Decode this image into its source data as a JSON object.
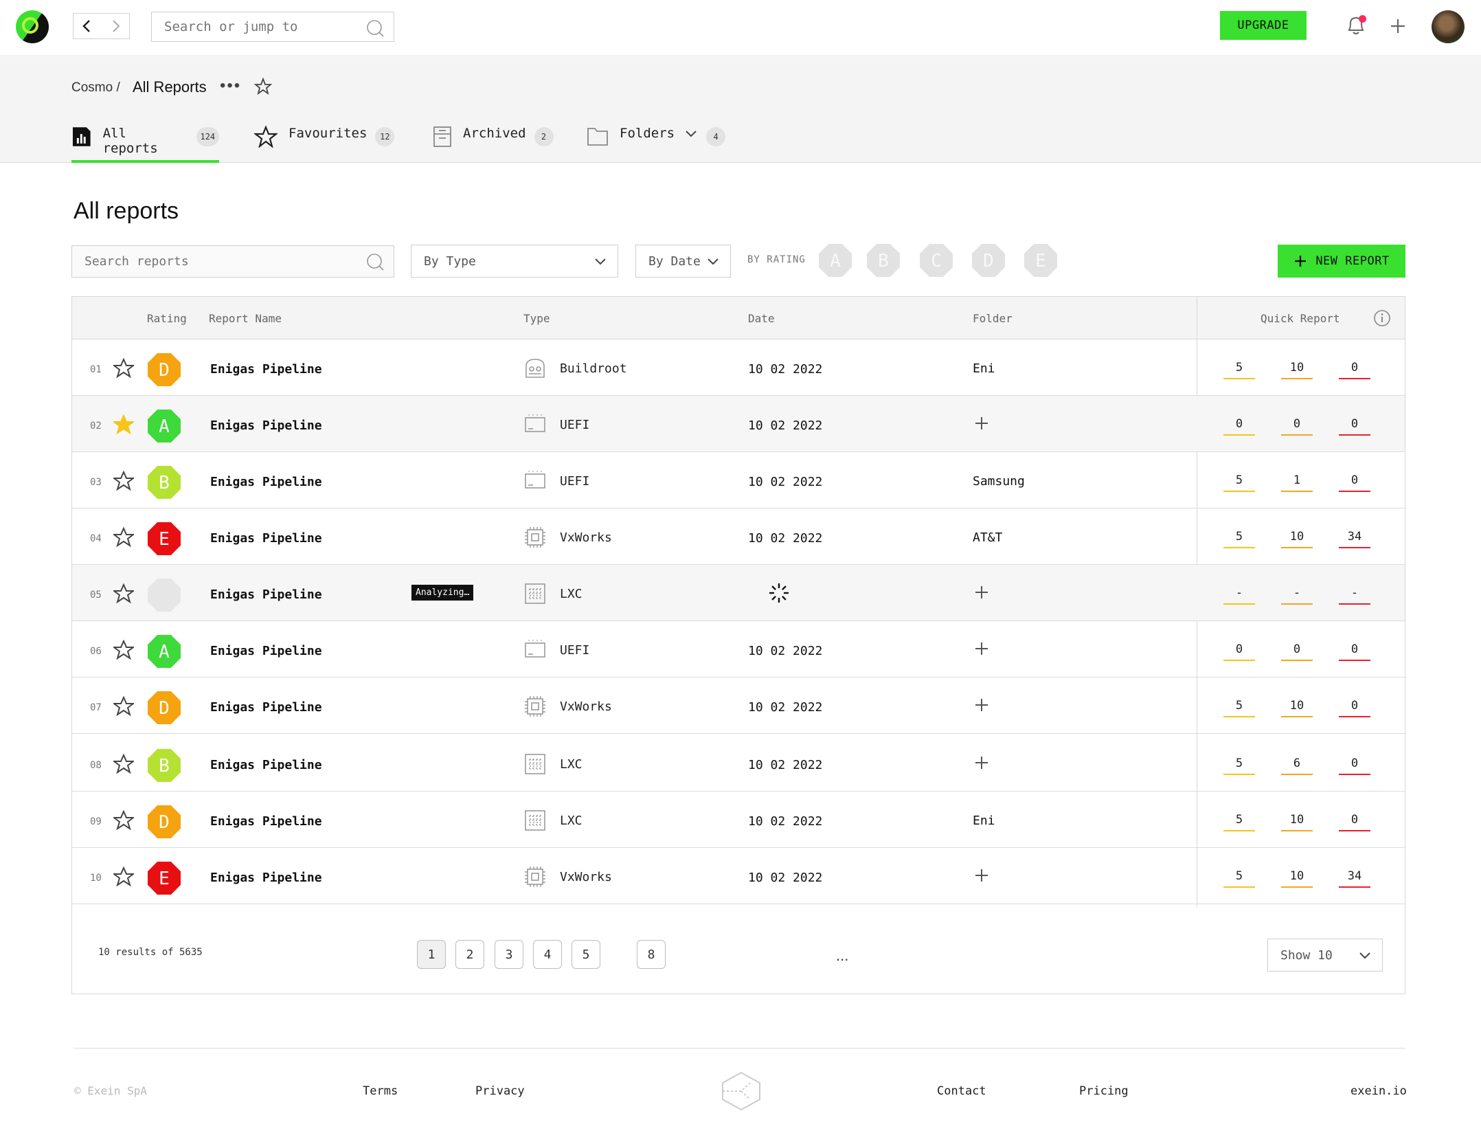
{
  "topbar": {
    "search_placeholder": "Search or jump to",
    "upgrade_label": "UPGRADE"
  },
  "breadcrumb": {
    "root": "Cosmo /",
    "current": "All Reports",
    "more": "•••"
  },
  "tabs": [
    {
      "label": "All reports",
      "count": "124"
    },
    {
      "label": "Favourites",
      "count": "12"
    },
    {
      "label": "Archived",
      "count": "2"
    },
    {
      "label": "Folders",
      "count": "4"
    }
  ],
  "page_title": "All reports",
  "filters": {
    "search_placeholder": "Search reports",
    "type_label": "By Type",
    "date_label": "By Date",
    "rating_label": "BY RATING",
    "ratings": [
      "A",
      "B",
      "C",
      "D",
      "E"
    ],
    "new_report_label": "NEW REPORT"
  },
  "table": {
    "headers": {
      "rating": "Rating",
      "name": "Report Name",
      "type": "Type",
      "date": "Date",
      "folder": "Folder",
      "quick_report": "Quick Report"
    },
    "rows": [
      {
        "num": "01",
        "starred": false,
        "rating": "D",
        "name": "Enigas Pipeline",
        "type": "Buildroot",
        "type_icon": "buildroot-icon",
        "date": "10 02 2022",
        "folder": "Eni",
        "q": [
          "5",
          "10",
          "0"
        ]
      },
      {
        "num": "02",
        "starred": true,
        "rating": "A",
        "name": "Enigas Pipeline",
        "type": "UEFI",
        "type_icon": "uefi-icon",
        "date": "10 02 2022",
        "folder": "",
        "q": [
          "0",
          "0",
          "0"
        ]
      },
      {
        "num": "03",
        "starred": false,
        "rating": "B",
        "name": "Enigas Pipeline",
        "type": "UEFI",
        "type_icon": "uefi-icon",
        "date": "10 02 2022",
        "folder": "Samsung",
        "q": [
          "5",
          "1",
          "0"
        ]
      },
      {
        "num": "04",
        "starred": false,
        "rating": "E",
        "name": "Enigas Pipeline",
        "type": "VxWorks",
        "type_icon": "chip-icon",
        "date": "10 02 2022",
        "folder": "AT&T",
        "q": [
          "5",
          "10",
          "34"
        ]
      },
      {
        "num": "05",
        "starred": false,
        "rating": "",
        "name": "Enigas Pipeline",
        "tag": "Analyzing…",
        "type": "LXC",
        "type_icon": "grid-icon",
        "date": "",
        "loading": true,
        "folder": "",
        "q": [
          "-",
          "-",
          "-"
        ]
      },
      {
        "num": "06",
        "starred": false,
        "rating": "A",
        "name": "Enigas Pipeline",
        "type": "UEFI",
        "type_icon": "uefi-icon",
        "date": "10 02 2022",
        "folder": "",
        "q": [
          "0",
          "0",
          "0"
        ]
      },
      {
        "num": "07",
        "starred": false,
        "rating": "D",
        "name": "Enigas Pipeline",
        "type": "VxWorks",
        "type_icon": "chip-icon",
        "date": "10 02 2022",
        "folder": "",
        "q": [
          "5",
          "10",
          "0"
        ]
      },
      {
        "num": "08",
        "starred": false,
        "rating": "B",
        "name": "Enigas Pipeline",
        "type": "LXC",
        "type_icon": "grid-icon",
        "date": "10 02 2022",
        "folder": "",
        "q": [
          "5",
          "6",
          "0"
        ]
      },
      {
        "num": "09",
        "starred": false,
        "rating": "D",
        "name": "Enigas Pipeline",
        "type": "LXC",
        "type_icon": "grid-icon",
        "date": "10 02 2022",
        "folder": "Eni",
        "q": [
          "5",
          "10",
          "0"
        ]
      },
      {
        "num": "10",
        "starred": false,
        "rating": "E",
        "name": "Enigas Pipeline",
        "type": "VxWorks",
        "type_icon": "chip-icon",
        "date": "10 02 2022",
        "folder": "",
        "q": [
          "5",
          "10",
          "34"
        ]
      }
    ]
  },
  "pagination": {
    "results": "10 results of 5635",
    "pages": [
      "1",
      "2",
      "3",
      "4",
      "5",
      "8"
    ],
    "current": "1",
    "ellipsis": "...",
    "show_label": "Show 10"
  },
  "rating_colors": {
    "A": "#3ed93a",
    "B": "#b5e232",
    "C": "#dddddd",
    "D": "#f5a30f",
    "E": "#e80f12"
  },
  "footer": {
    "copyright": "© Exein SpA",
    "terms": "Terms",
    "privacy": "Privacy",
    "contact": "Contact",
    "pricing": "Pricing",
    "site": "exein.io"
  }
}
